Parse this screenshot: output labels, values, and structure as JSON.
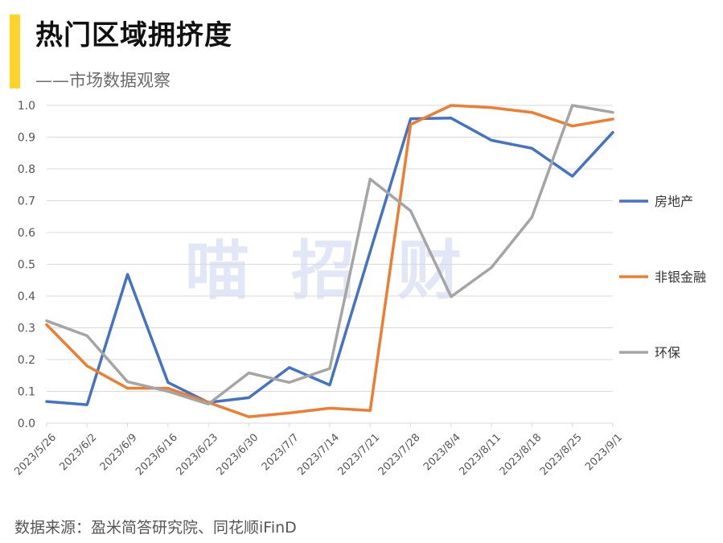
{
  "header": {
    "title": "热门区域拥挤度",
    "subtitle": "——市场数据观察"
  },
  "source_note": "数据来源：盈米简答研究院、同花顺iFinD",
  "watermark": "喵招财",
  "colors": {
    "accent_bar": "#FFD42A",
    "grid": "#d9d9d9"
  },
  "chart_data": {
    "type": "line",
    "title": "热门区域拥挤度",
    "xlabel": "",
    "ylabel": "",
    "ylim": [
      0,
      1.0
    ],
    "yticks": [
      "0.0",
      "0.1",
      "0.2",
      "0.3",
      "0.4",
      "0.5",
      "0.6",
      "0.7",
      "0.8",
      "0.9",
      "1.0"
    ],
    "grid": true,
    "legend_position": "right",
    "categories": [
      "2023/5/26",
      "2023/6/2",
      "2023/6/9",
      "2023/6/16",
      "2023/6/23",
      "2023/6/30",
      "2023/7/7",
      "2023/7/14",
      "2023/7/21",
      "2023/7/28",
      "2023/8/4",
      "2023/8/11",
      "2023/8/18",
      "2023/8/25",
      "2023/9/1"
    ],
    "series": [
      {
        "name": "房地产",
        "color": "#4472C4",
        "values": [
          0.068,
          0.058,
          0.468,
          0.128,
          0.065,
          0.08,
          0.175,
          0.12,
          0.54,
          0.958,
          0.96,
          0.89,
          0.865,
          0.777,
          0.915
        ]
      },
      {
        "name": "非银金融",
        "color": "#ED7D31",
        "values": [
          0.31,
          0.18,
          0.11,
          0.11,
          0.065,
          0.02,
          0.032,
          0.047,
          0.04,
          0.94,
          1.0,
          0.993,
          0.978,
          0.935,
          0.957
        ]
      },
      {
        "name": "环保",
        "color": "#A5A5A5",
        "values": [
          0.322,
          0.275,
          0.13,
          0.1,
          0.06,
          0.158,
          0.128,
          0.172,
          0.768,
          0.668,
          0.398,
          0.49,
          0.648,
          1.0,
          0.978
        ]
      }
    ]
  }
}
